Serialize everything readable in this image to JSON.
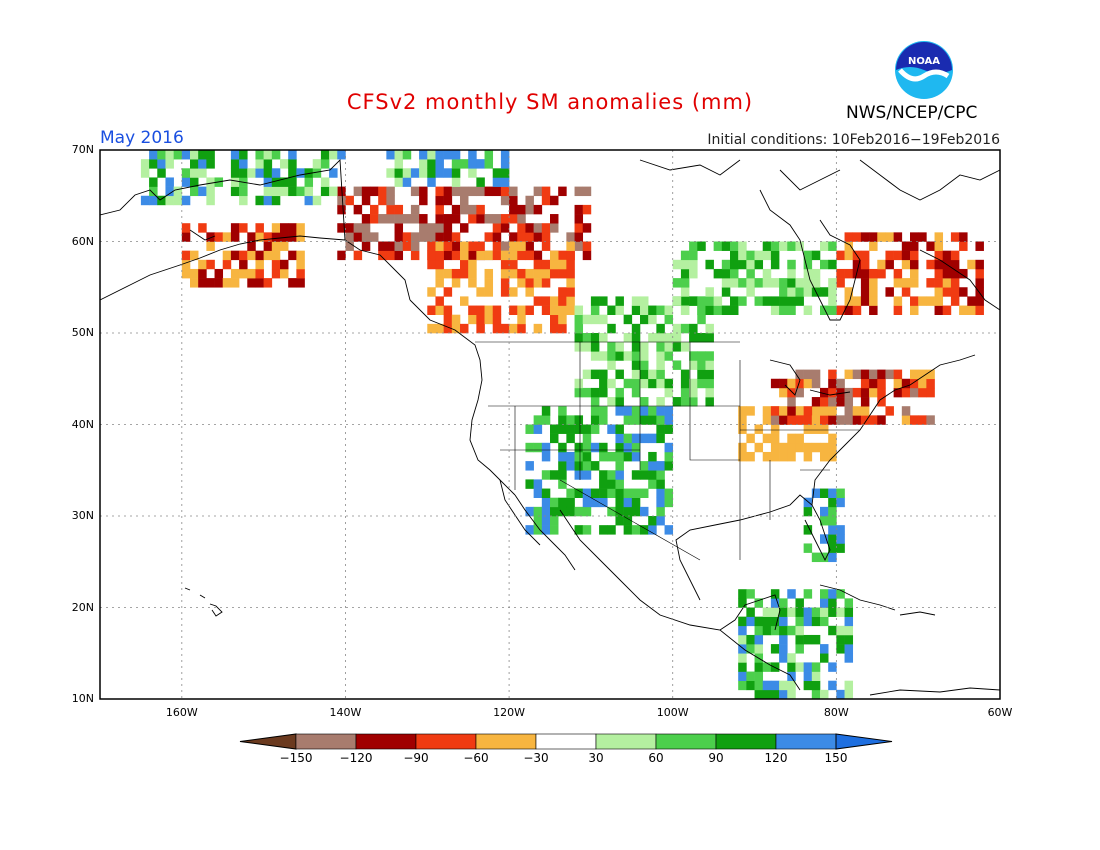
{
  "title": "CFSv2 monthly SM anomalies (mm)",
  "valid_month": "May 2016",
  "initial_conditions": "Initial conditions: 10Feb2016−19Feb2016",
  "agency": "NWS/NCEP/CPC",
  "logo_text": "NOAA",
  "lat_labels": [
    "70N",
    "60N",
    "50N",
    "40N",
    "30N",
    "20N",
    "10N"
  ],
  "lon_labels": [
    "160W",
    "140W",
    "120W",
    "100W",
    "80W",
    "60W"
  ],
  "colorbar": {
    "labels": [
      "−150",
      "−120",
      "−90",
      "−60",
      "−30",
      "30",
      "60",
      "90",
      "120",
      "150"
    ],
    "colors": [
      "#6b3a1f",
      "#a87c6e",
      "#a00000",
      "#f03b12",
      "#f7b540",
      "#ffffff",
      "#b4f0a0",
      "#4ccf4c",
      "#10a010",
      "#3c8be6",
      "#1e6fe0"
    ]
  },
  "chart_data": {
    "type": "heatmap",
    "variable": "soil moisture anomaly (mm)",
    "lat_range": [
      10,
      70
    ],
    "lon_range": [
      -170,
      -60
    ],
    "regions": [
      {
        "area": "Yukon / NW Canada",
        "sign": "dry",
        "range": [
          -150,
          -60
        ]
      },
      {
        "area": "British Columbia / Alberta",
        "sign": "dry",
        "range": [
          -90,
          -30
        ]
      },
      {
        "area": "Southern Alaska",
        "sign": "dry",
        "range": [
          -120,
          -30
        ]
      },
      {
        "area": "Northern Alaska / Arctic coast",
        "sign": "wet",
        "range": [
          30,
          150
        ]
      },
      {
        "area": "US Southwest / Rockies / Southern Plains",
        "sign": "wet",
        "range": [
          60,
          150
        ]
      },
      {
        "area": "Northern Plains / Canadian Prairies",
        "sign": "wet",
        "range": [
          30,
          120
        ]
      },
      {
        "area": "Ohio Valley / Tennessee",
        "sign": "dry",
        "range": [
          -60,
          -30
        ]
      },
      {
        "area": "Great Lakes / New England",
        "sign": "dry",
        "range": [
          -150,
          -30
        ]
      },
      {
        "area": "Florida / Southeast coast",
        "sign": "wet",
        "range": [
          60,
          150
        ]
      },
      {
        "area": "Quebec / Labrador",
        "sign": "dry",
        "range": [
          -120,
          -30
        ]
      },
      {
        "area": "Central America / Caribbean",
        "sign": "wet",
        "range": [
          30,
          150
        ]
      }
    ]
  }
}
